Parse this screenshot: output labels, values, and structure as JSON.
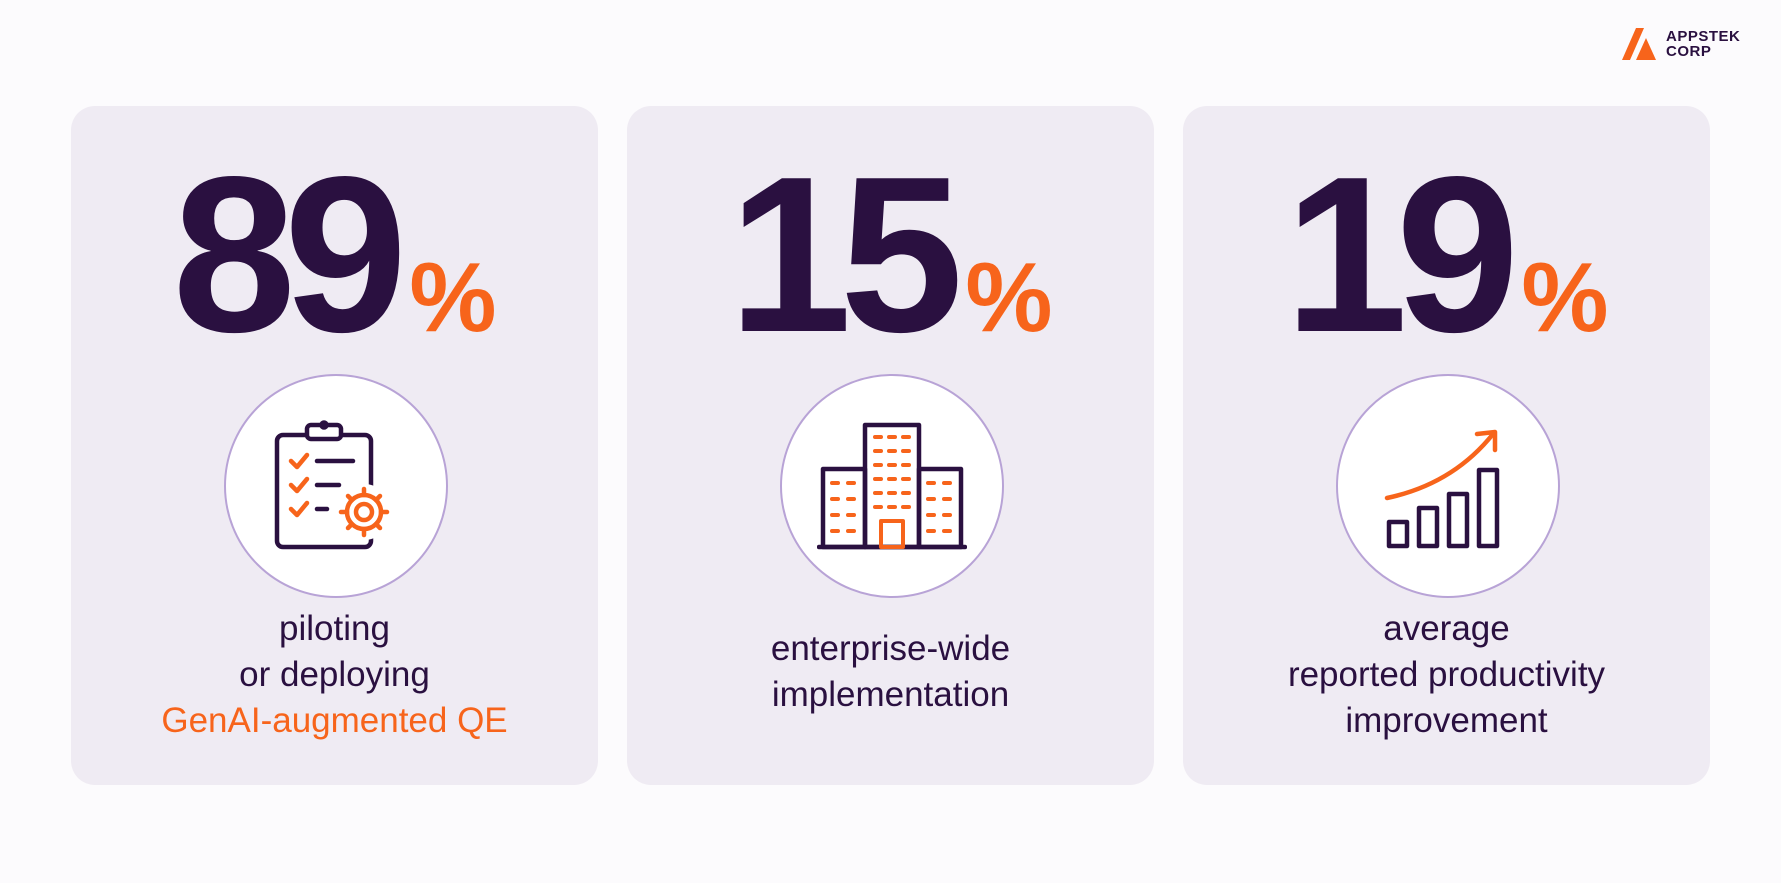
{
  "brand": {
    "name_line1": "APPSTEK",
    "name_line2": "CORP",
    "accent_color": "#f7641b",
    "text_color": "#2a1040"
  },
  "cards": [
    {
      "value": "89",
      "unit": "%",
      "icon": "clipboard-gear-icon",
      "lines": [
        "piloting",
        "or deploying"
      ],
      "highlight": "GenAI-augmented QE"
    },
    {
      "value": "15",
      "unit": "%",
      "icon": "office-buildings-icon",
      "lines": [
        "enterprise-wide",
        "implementation"
      ]
    },
    {
      "value": "19",
      "unit": "%",
      "icon": "growth-bar-chart-icon",
      "lines": [
        "average",
        "reported productivity",
        "improvement"
      ]
    }
  ]
}
